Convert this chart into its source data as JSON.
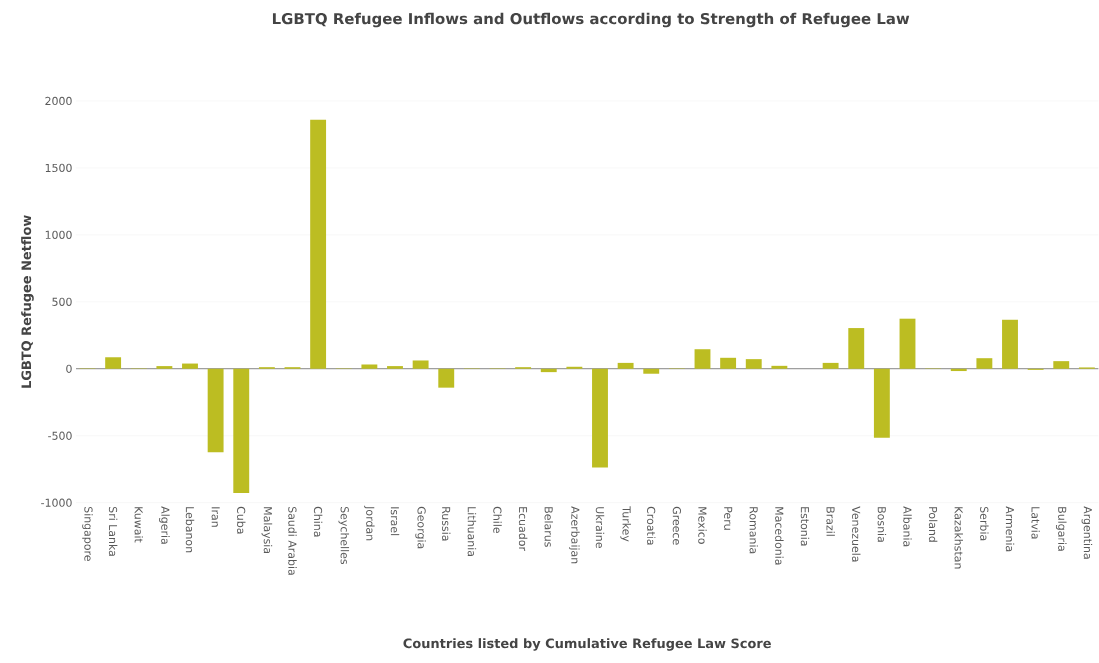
{
  "chart_data": {
    "type": "bar",
    "title": "LGBTQ Refugee Inflows and Outflows according to Strength of Refugee Law",
    "xlabel": "Countries listed by Cumulative Refugee Law Score",
    "ylabel": "LGBTQ Refugee Netflow",
    "categories": [
      "Singapore",
      "Sri Lanka",
      "Kuwait",
      "Algeria",
      "Lebanon",
      "Iran",
      "Cuba",
      "Malaysia",
      "Saudi Arabia",
      "China",
      "Seychelles",
      "Jordan",
      "Israel",
      "Georgia",
      "Russia",
      "Lithuania",
      "Chile",
      "Ecuador",
      "Belarus",
      "Azerbaijan",
      "Ukraine",
      "Turkey",
      "Croatia",
      "Greece",
      "Mexico",
      "Peru",
      "Romania",
      "Macedonia",
      "Estonia",
      "Brazil",
      "Venezuela",
      "Bosnia",
      "Albania",
      "Poland",
      "Kazakhstan",
      "Serbia",
      "Armenia",
      "Latvia",
      "Bulgaria",
      "Argentina"
    ],
    "values": [
      3,
      86,
      3,
      20,
      39,
      -623,
      -928,
      12,
      12,
      1860,
      3,
      32,
      20,
      62,
      -141,
      3,
      3,
      12,
      -25,
      15,
      -738,
      44,
      -37,
      3,
      146,
      82,
      72,
      22,
      0,
      44,
      304,
      -515,
      374,
      3,
      -17,
      79,
      366,
      -8,
      57,
      10
    ],
    "color": "#bcbd22",
    "ylim": [
      -1000,
      2000
    ],
    "yticks": [
      -1000,
      -500,
      0,
      500,
      1000,
      1500,
      2000
    ],
    "grid": "y"
  }
}
